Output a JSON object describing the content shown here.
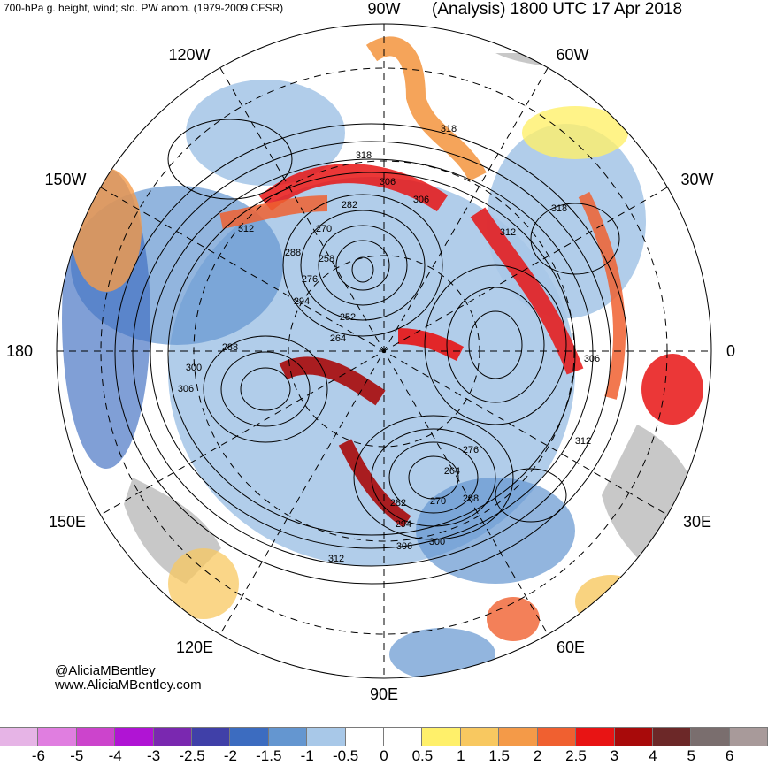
{
  "header": {
    "left_title": "700-hPa g. height, wind; std. PW anom. (1979-2009 CFSR)",
    "right_title": "(Analysis) 1800 UTC 17 Apr 2018"
  },
  "credits": {
    "handle": "@AliciaMBentley",
    "website": "www.AliciaMBentley.com"
  },
  "map": {
    "projection": "north-polar-stereographic",
    "longitude_labels": [
      {
        "text": "90W",
        "pos": "top"
      },
      {
        "text": "60W",
        "pos": "top-right"
      },
      {
        "text": "30W",
        "pos": "right-upper"
      },
      {
        "text": "0",
        "pos": "right"
      },
      {
        "text": "30E",
        "pos": "right-lower"
      },
      {
        "text": "60E",
        "pos": "bottom-right"
      },
      {
        "text": "90E",
        "pos": "bottom"
      },
      {
        "text": "120E",
        "pos": "bottom-left"
      },
      {
        "text": "150E",
        "pos": "left-lower"
      },
      {
        "text": "180",
        "pos": "left"
      },
      {
        "text": "150W",
        "pos": "left-upper"
      },
      {
        "text": "120W",
        "pos": "top-left"
      }
    ],
    "height_contour_labels": [
      "318",
      "318",
      "306",
      "282",
      "306",
      "312",
      "318",
      "312",
      "270",
      "288",
      "258",
      "276",
      "294",
      "252",
      "264",
      "288",
      "300",
      "306",
      "306",
      "312",
      "276",
      "264",
      "282",
      "270",
      "288",
      "294",
      "306",
      "300",
      "312"
    ],
    "colors": {
      "land": "#c8c8c8",
      "contour": "#000000",
      "graticule": "#000000"
    }
  },
  "colorbar": {
    "tick_labels": [
      "-6",
      "-5",
      "-4",
      "-3",
      "-2.5",
      "-2",
      "-1.5",
      "-1",
      "-0.5",
      "0",
      "0.5",
      "1",
      "1.5",
      "2",
      "2.5",
      "3",
      "4",
      "5",
      "6"
    ],
    "colors": [
      "#e6b4e6",
      "#e07ee0",
      "#cc44cc",
      "#b014d4",
      "#7a28b0",
      "#4040a8",
      "#3c6cc0",
      "#6496d0",
      "#a8c8e8",
      "#ffffff",
      "#ffffff",
      "#fff06a",
      "#f8c860",
      "#f49a48",
      "#f06030",
      "#e81414",
      "#a80a0a",
      "#6c2828",
      "#7a6e6e",
      "#a89a9a"
    ]
  }
}
